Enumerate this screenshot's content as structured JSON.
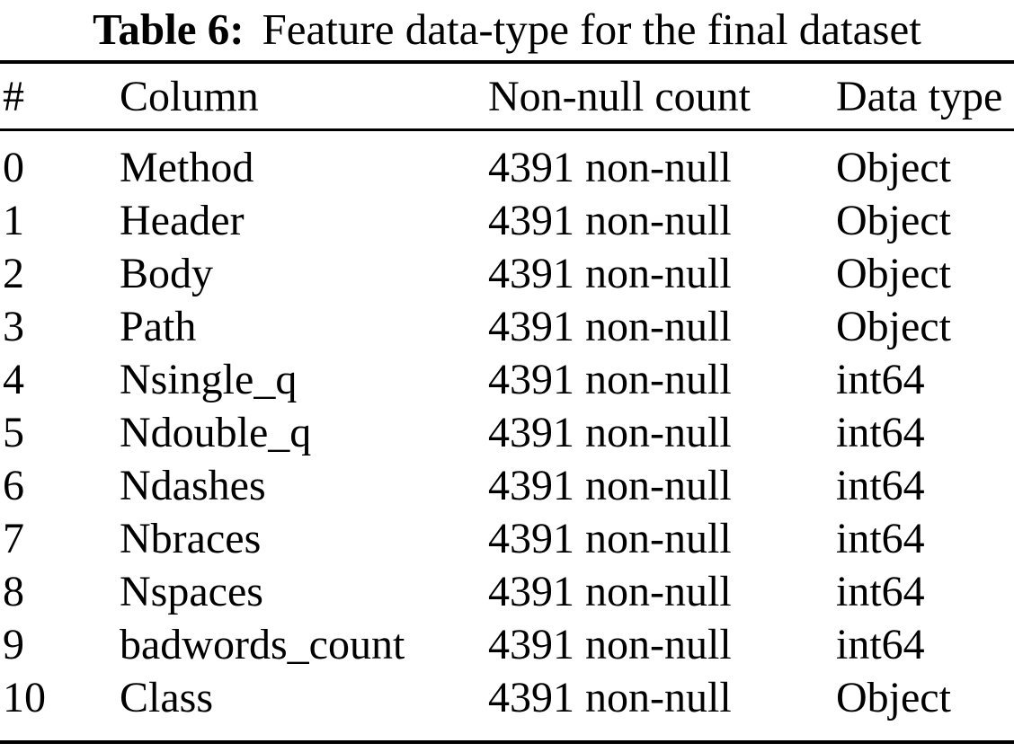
{
  "title": {
    "label": "Table 6:",
    "text": "Feature data-type for the final dataset"
  },
  "table": {
    "headers": {
      "num": "#",
      "column": "Column",
      "count": "Non-null count",
      "dtype": "Data type"
    },
    "rows": [
      {
        "num": "0",
        "column": "Method",
        "count": "4391 non-null",
        "dtype": "Object"
      },
      {
        "num": "1",
        "column": "Header",
        "count": "4391 non-null",
        "dtype": "Object"
      },
      {
        "num": "2",
        "column": "Body",
        "count": "4391 non-null",
        "dtype": "Object"
      },
      {
        "num": "3",
        "column": "Path",
        "count": "4391 non-null",
        "dtype": "Object"
      },
      {
        "num": "4",
        "column": "Nsingle_q",
        "count": "4391 non-null",
        "dtype": "int64"
      },
      {
        "num": "5",
        "column": "Ndouble_q",
        "count": "4391 non-null",
        "dtype": "int64"
      },
      {
        "num": "6",
        "column": "Ndashes",
        "count": "4391 non-null",
        "dtype": "int64"
      },
      {
        "num": "7",
        "column": "Nbraces",
        "count": "4391 non-null",
        "dtype": "int64"
      },
      {
        "num": "8",
        "column": "Nspaces",
        "count": "4391 non-null",
        "dtype": "int64"
      },
      {
        "num": "9",
        "column": "badwords_count",
        "count": "4391 non-null",
        "dtype": "int64"
      },
      {
        "num": "10",
        "column": "Class",
        "count": "4391 non-null",
        "dtype": "Object"
      }
    ]
  },
  "colors": {
    "text": "#000000",
    "rule": "#000000",
    "background": "#ffffff"
  }
}
